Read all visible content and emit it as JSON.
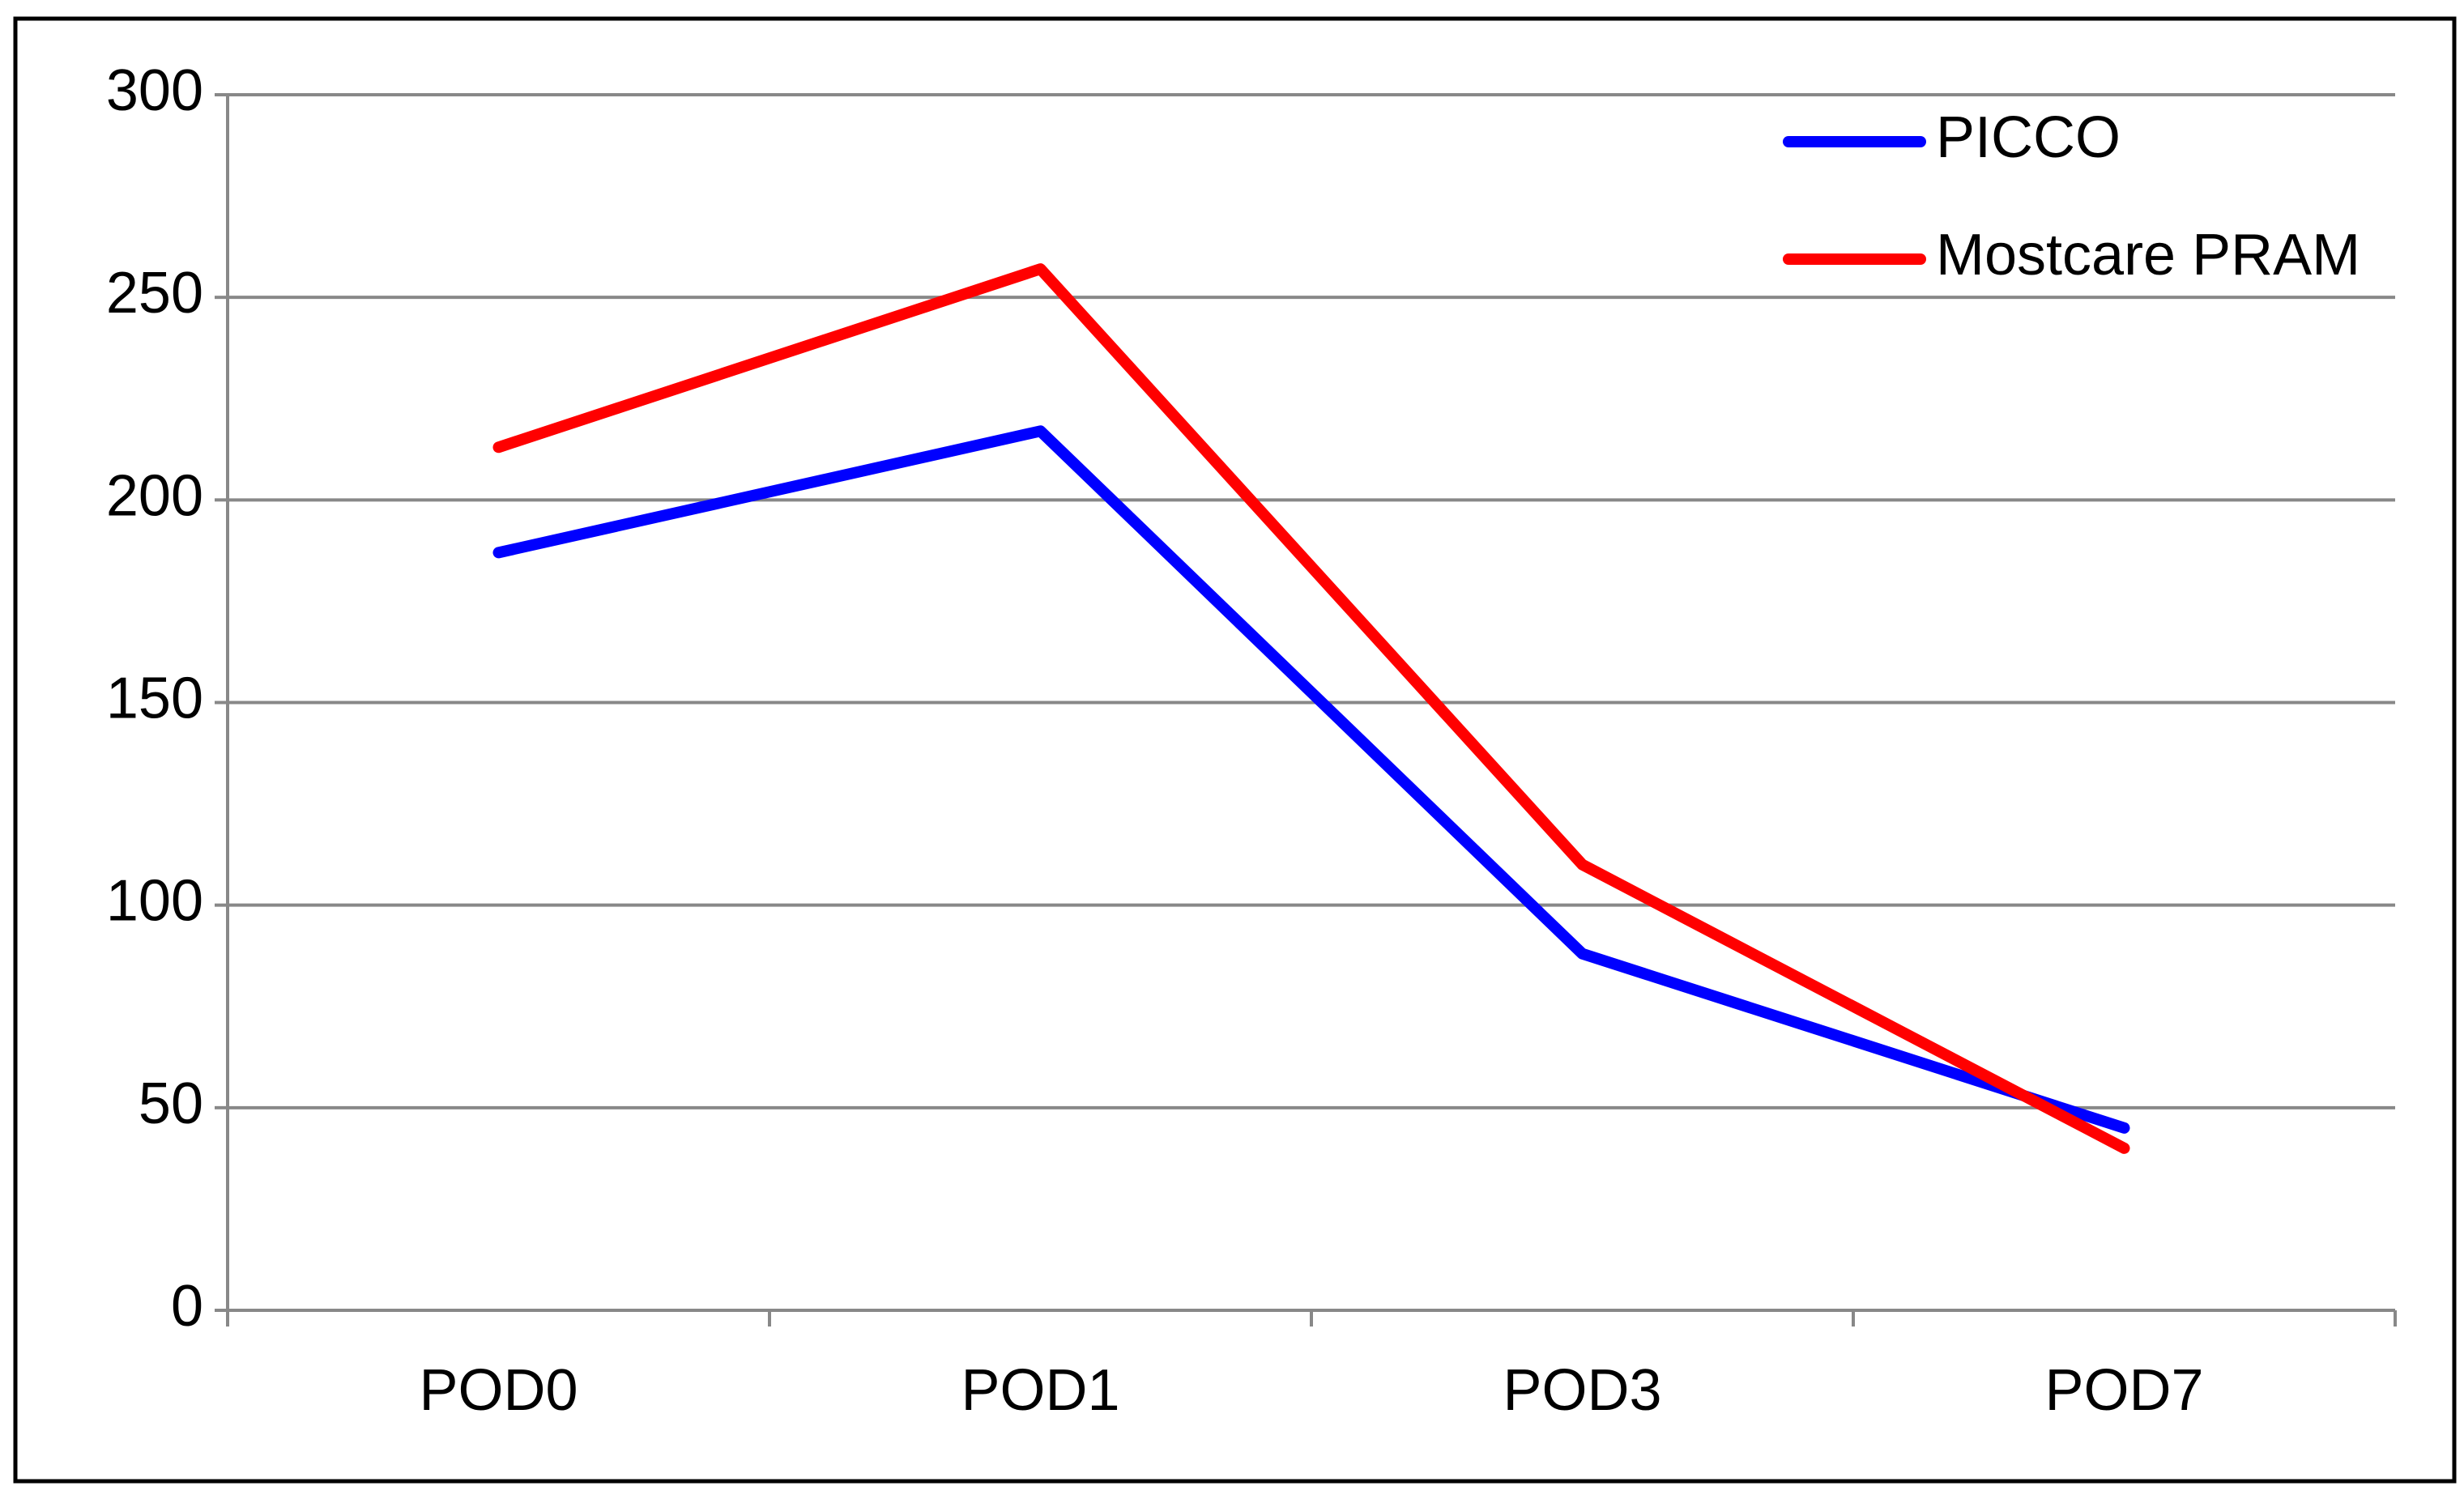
{
  "chart_data": {
    "type": "line",
    "categories": [
      "POD0",
      "POD1",
      "POD3",
      "POD7"
    ],
    "series": [
      {
        "name": "PICCO",
        "color": "#0000ff",
        "values": [
          187,
          217,
          88,
          45
        ]
      },
      {
        "name": "Mostcare PRAM",
        "color": "#ff0000",
        "values": [
          213,
          257,
          110,
          40
        ]
      }
    ],
    "ylim": [
      0,
      300
    ],
    "yticks": [
      0,
      50,
      100,
      150,
      200,
      250,
      300
    ],
    "grid": true,
    "legend": "top-right"
  }
}
